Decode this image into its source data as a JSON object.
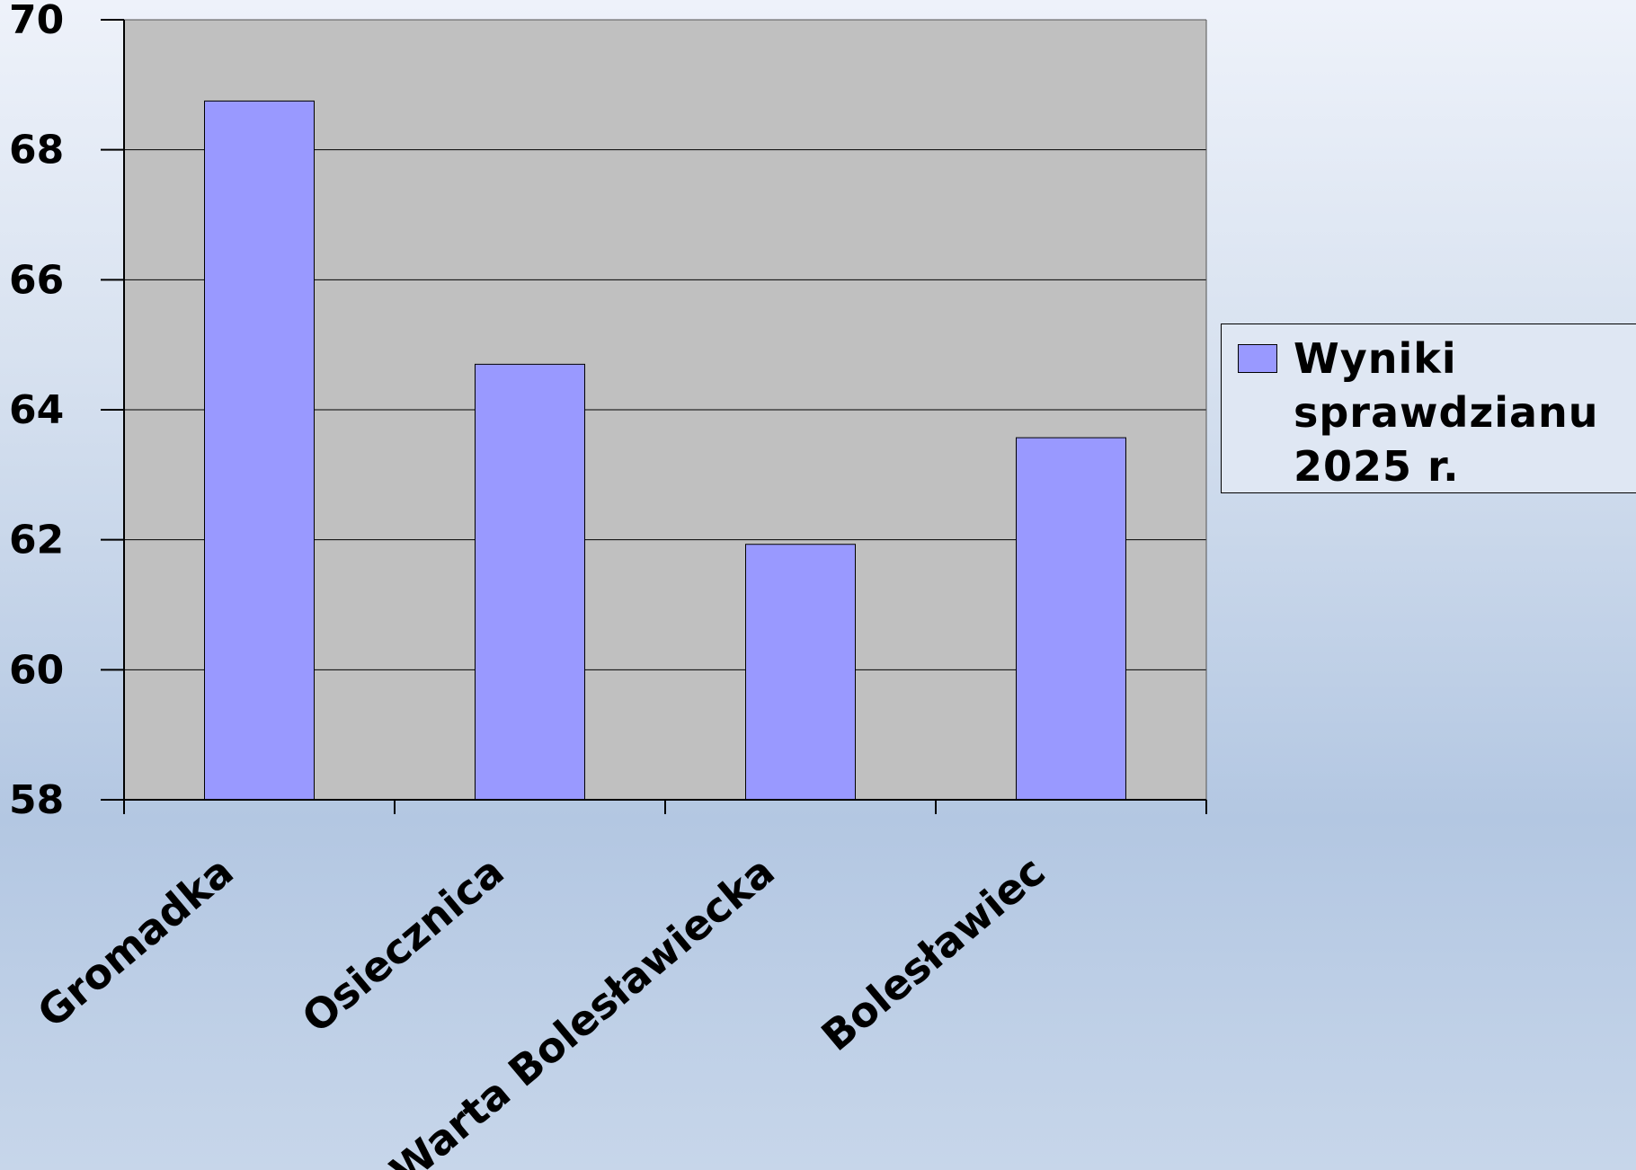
{
  "chart_data": {
    "type": "bar",
    "categories": [
      "Gromadka",
      "Osiecznica",
      "Warta Bolesławiecka",
      "Bolesławiec"
    ],
    "series": [
      {
        "name": "Wyniki sprawdzianu 2025 r.",
        "values": [
          68.75,
          64.7,
          61.93,
          63.57
        ],
        "color": "#9999ff"
      }
    ],
    "ylim": [
      58,
      70
    ],
    "yticks": [
      "58",
      "60",
      "62",
      "64",
      "66",
      "68",
      "70"
    ],
    "grid": true,
    "legend_position": "right",
    "plot_background": "#c0c0c0",
    "legend_label": "Wyniki\nsprawdzianu\n2025 r."
  }
}
